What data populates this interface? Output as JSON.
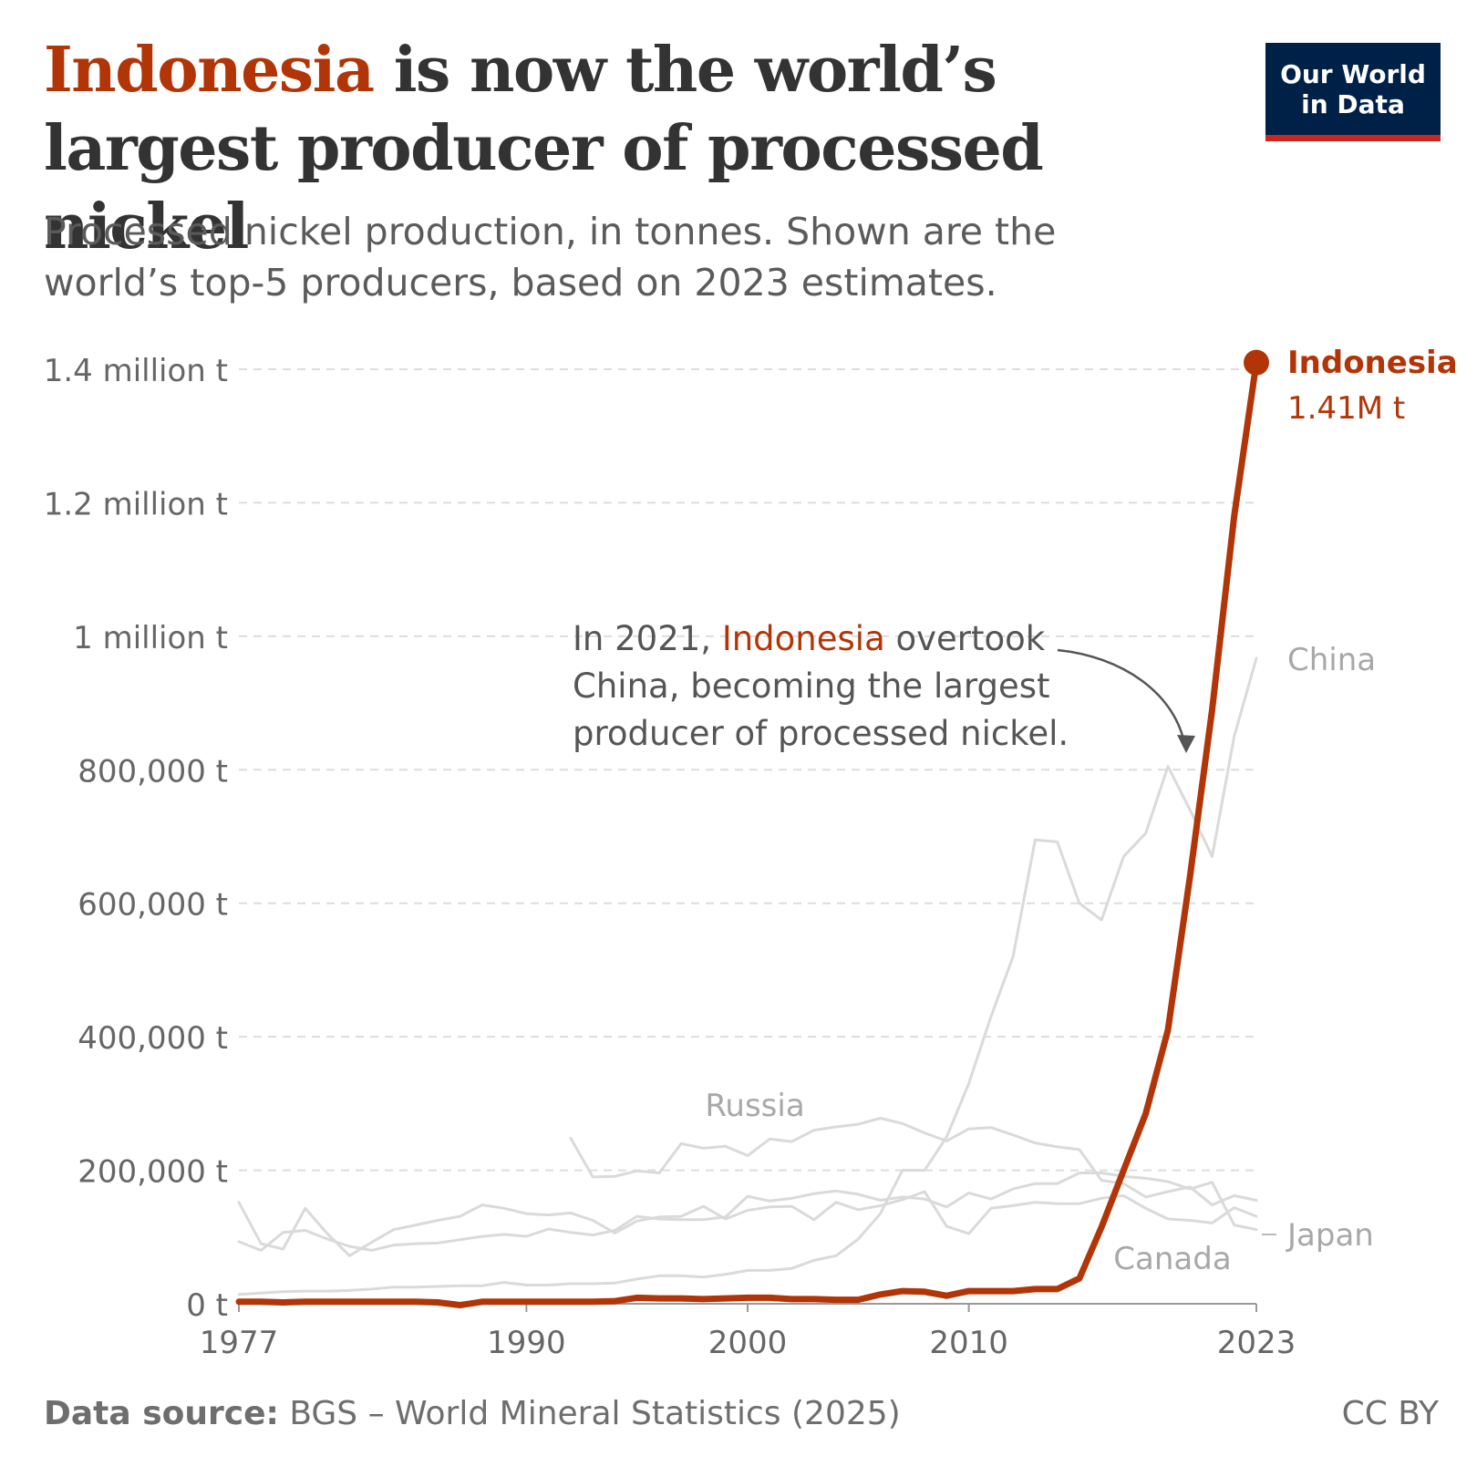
{
  "header": {
    "title_highlight": "Indonesia",
    "title_rest": " is now the world’s largest producer of processed nickel",
    "subtitle": "Processed nickel production, in tonnes. Shown are the world’s top-5 producers, based on 2023 estimates."
  },
  "logo": {
    "line1": "Our World",
    "line2": "in Data",
    "bg_color": "#002147",
    "accent_color": "#ce261e"
  },
  "footer": {
    "source_label": "Data source:",
    "source_text": " BGS – World Mineral Statistics (2025)",
    "license": "CC BY"
  },
  "annotation": {
    "part1": "In 2021, ",
    "highlight": "Indonesia",
    "part2": " overtook",
    "line2": "China, becoming the largest",
    "line3": "producer of processed nickel."
  },
  "chart_data": {
    "type": "line",
    "xlabel": "",
    "ylabel": "",
    "xlim": [
      1977,
      2023
    ],
    "ylim": [
      0,
      1400000
    ],
    "x_ticks": [
      {
        "value": 1977,
        "label": "1977"
      },
      {
        "value": 1990,
        "label": "1990"
      },
      {
        "value": 2000,
        "label": "2000"
      },
      {
        "value": 2010,
        "label": "2010"
      },
      {
        "value": 2023,
        "label": "2023"
      }
    ],
    "y_ticks": [
      {
        "value": 0,
        "label": "0 t"
      },
      {
        "value": 200000,
        "label": "200,000 t"
      },
      {
        "value": 400000,
        "label": "400,000 t"
      },
      {
        "value": 600000,
        "label": "600,000 t"
      },
      {
        "value": 800000,
        "label": "800,000 t"
      },
      {
        "value": 1000000,
        "label": "1 million t"
      },
      {
        "value": 1200000,
        "label": "1.2 million t"
      },
      {
        "value": 1400000,
        "label": "1.4 million t"
      }
    ],
    "grid": "horizontal dashed",
    "highlight_color": "#b13507",
    "muted_color": "#dadada",
    "series": [
      {
        "name": "Indonesia",
        "value_label": "1.41M t",
        "highlight": true,
        "points": [
          [
            1977,
            3000
          ],
          [
            1978,
            3000
          ],
          [
            1979,
            2000
          ],
          [
            1980,
            3000
          ],
          [
            1981,
            3000
          ],
          [
            1982,
            3000
          ],
          [
            1983,
            3000
          ],
          [
            1984,
            3000
          ],
          [
            1985,
            3000
          ],
          [
            1986,
            2000
          ],
          [
            1987,
            -2000
          ],
          [
            1988,
            3000
          ],
          [
            1989,
            3000
          ],
          [
            1990,
            3000
          ],
          [
            1991,
            3000
          ],
          [
            1992,
            3000
          ],
          [
            1993,
            3000
          ],
          [
            1994,
            4000
          ],
          [
            1995,
            9000
          ],
          [
            1996,
            8000
          ],
          [
            1997,
            8000
          ],
          [
            1998,
            7000
          ],
          [
            1999,
            8000
          ],
          [
            2000,
            9000
          ],
          [
            2001,
            9000
          ],
          [
            2002,
            7000
          ],
          [
            2003,
            7000
          ],
          [
            2004,
            6000
          ],
          [
            2005,
            6000
          ],
          [
            2006,
            14000
          ],
          [
            2007,
            19000
          ],
          [
            2008,
            18000
          ],
          [
            2009,
            12000
          ],
          [
            2010,
            19000
          ],
          [
            2011,
            19000
          ],
          [
            2012,
            19000
          ],
          [
            2013,
            22000
          ],
          [
            2014,
            22000
          ],
          [
            2015,
            38000
          ],
          [
            2016,
            115000
          ],
          [
            2017,
            200000
          ],
          [
            2018,
            285000
          ],
          [
            2019,
            410000
          ],
          [
            2020,
            640000
          ],
          [
            2021,
            890000
          ],
          [
            2022,
            1180000
          ],
          [
            2023,
            1410000
          ]
        ]
      },
      {
        "name": "China",
        "points": [
          [
            1977,
            14000
          ],
          [
            1978,
            16000
          ],
          [
            1979,
            18000
          ],
          [
            1980,
            19000
          ],
          [
            1981,
            19000
          ],
          [
            1982,
            20000
          ],
          [
            1983,
            22000
          ],
          [
            1984,
            25000
          ],
          [
            1985,
            25000
          ],
          [
            1986,
            26000
          ],
          [
            1987,
            27000
          ],
          [
            1988,
            27000
          ],
          [
            1989,
            32000
          ],
          [
            1990,
            28000
          ],
          [
            1991,
            28000
          ],
          [
            1992,
            30000
          ],
          [
            1993,
            30000
          ],
          [
            1994,
            31000
          ],
          [
            1995,
            37000
          ],
          [
            1996,
            42000
          ],
          [
            1997,
            42000
          ],
          [
            1998,
            40000
          ],
          [
            1999,
            44000
          ],
          [
            2000,
            50000
          ],
          [
            2001,
            50000
          ],
          [
            2002,
            53000
          ],
          [
            2003,
            65000
          ],
          [
            2004,
            72000
          ],
          [
            2005,
            97000
          ],
          [
            2006,
            135000
          ],
          [
            2007,
            200000
          ],
          [
            2008,
            200000
          ],
          [
            2009,
            250000
          ],
          [
            2010,
            330000
          ],
          [
            2011,
            430000
          ],
          [
            2012,
            520000
          ],
          [
            2013,
            695000
          ],
          [
            2014,
            692000
          ],
          [
            2015,
            600000
          ],
          [
            2016,
            575000
          ],
          [
            2017,
            670000
          ],
          [
            2018,
            705000
          ],
          [
            2019,
            805000
          ],
          [
            2020,
            740000
          ],
          [
            2021,
            670000
          ],
          [
            2022,
            850000
          ],
          [
            2023,
            967000
          ]
        ]
      },
      {
        "name": "Russia",
        "points": [
          [
            1992,
            248000
          ],
          [
            1993,
            190000
          ],
          [
            1994,
            191000
          ],
          [
            1995,
            199000
          ],
          [
            1996,
            196000
          ],
          [
            1997,
            240000
          ],
          [
            1998,
            233000
          ],
          [
            1999,
            236000
          ],
          [
            2000,
            222000
          ],
          [
            2001,
            247000
          ],
          [
            2002,
            243000
          ],
          [
            2003,
            260000
          ],
          [
            2004,
            265000
          ],
          [
            2005,
            269000
          ],
          [
            2006,
            278000
          ],
          [
            2007,
            270000
          ],
          [
            2008,
            256000
          ],
          [
            2009,
            244000
          ],
          [
            2010,
            262000
          ],
          [
            2011,
            264000
          ],
          [
            2012,
            253000
          ],
          [
            2013,
            241000
          ],
          [
            2014,
            235000
          ],
          [
            2015,
            231000
          ],
          [
            2016,
            185000
          ],
          [
            2017,
            180000
          ],
          [
            2018,
            160000
          ],
          [
            2019,
            168000
          ],
          [
            2020,
            175000
          ],
          [
            2021,
            148000
          ],
          [
            2022,
            162000
          ],
          [
            2023,
            155000
          ]
        ]
      },
      {
        "name": "Canada",
        "points": [
          [
            1977,
            152000
          ],
          [
            1978,
            90000
          ],
          [
            1979,
            82000
          ],
          [
            1980,
            143000
          ],
          [
            1981,
            105000
          ],
          [
            1982,
            72000
          ],
          [
            1983,
            92000
          ],
          [
            1984,
            111000
          ],
          [
            1985,
            118000
          ],
          [
            1986,
            125000
          ],
          [
            1987,
            131000
          ],
          [
            1988,
            148000
          ],
          [
            1989,
            143000
          ],
          [
            1990,
            135000
          ],
          [
            1991,
            133000
          ],
          [
            1992,
            136000
          ],
          [
            1993,
            125000
          ],
          [
            1994,
            106000
          ],
          [
            1995,
            124000
          ],
          [
            1996,
            130000
          ],
          [
            1997,
            131000
          ],
          [
            1998,
            146000
          ],
          [
            1999,
            127000
          ],
          [
            2000,
            140000
          ],
          [
            2001,
            145000
          ],
          [
            2002,
            146000
          ],
          [
            2003,
            126000
          ],
          [
            2004,
            152000
          ],
          [
            2005,
            141000
          ],
          [
            2006,
            147000
          ],
          [
            2007,
            156000
          ],
          [
            2008,
            168000
          ],
          [
            2009,
            116000
          ],
          [
            2010,
            105000
          ],
          [
            2011,
            143000
          ],
          [
            2012,
            147000
          ],
          [
            2013,
            152000
          ],
          [
            2014,
            150000
          ],
          [
            2015,
            150000
          ],
          [
            2016,
            158000
          ],
          [
            2017,
            162000
          ],
          [
            2018,
            143000
          ],
          [
            2019,
            127000
          ],
          [
            2020,
            125000
          ],
          [
            2021,
            121000
          ],
          [
            2022,
            144000
          ],
          [
            2023,
            131000
          ]
        ]
      },
      {
        "name": "Japan",
        "points": [
          [
            1977,
            93000
          ],
          [
            1978,
            80000
          ],
          [
            1979,
            107000
          ],
          [
            1980,
            110000
          ],
          [
            1981,
            97000
          ],
          [
            1982,
            86000
          ],
          [
            1983,
            80000
          ],
          [
            1984,
            88000
          ],
          [
            1985,
            90000
          ],
          [
            1986,
            91000
          ],
          [
            1987,
            96000
          ],
          [
            1988,
            101000
          ],
          [
            1989,
            104000
          ],
          [
            1990,
            101000
          ],
          [
            1991,
            112000
          ],
          [
            1992,
            107000
          ],
          [
            1993,
            103000
          ],
          [
            1994,
            110000
          ],
          [
            1995,
            131000
          ],
          [
            1996,
            127000
          ],
          [
            1997,
            126000
          ],
          [
            1998,
            126000
          ],
          [
            1999,
            130000
          ],
          [
            2000,
            161000
          ],
          [
            2001,
            154000
          ],
          [
            2002,
            158000
          ],
          [
            2003,
            165000
          ],
          [
            2004,
            169000
          ],
          [
            2005,
            164000
          ],
          [
            2006,
            155000
          ],
          [
            2007,
            160000
          ],
          [
            2008,
            157000
          ],
          [
            2009,
            145000
          ],
          [
            2010,
            166000
          ],
          [
            2011,
            157000
          ],
          [
            2012,
            172000
          ],
          [
            2013,
            180000
          ],
          [
            2014,
            180000
          ],
          [
            2015,
            196000
          ],
          [
            2016,
            196000
          ],
          [
            2017,
            191000
          ],
          [
            2018,
            188000
          ],
          [
            2019,
            183000
          ],
          [
            2020,
            172000
          ],
          [
            2021,
            182000
          ],
          [
            2022,
            118000
          ],
          [
            2023,
            111000
          ]
        ]
      }
    ]
  }
}
